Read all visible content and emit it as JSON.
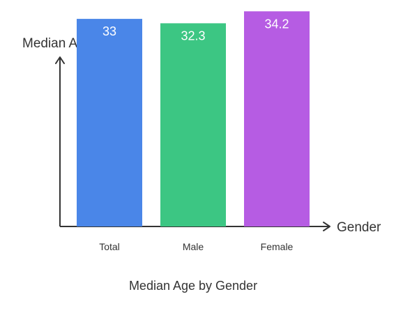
{
  "chart_data": {
    "type": "bar",
    "title": "Median Age by Gender",
    "xlabel": "Gender",
    "ylabel": "Median Age",
    "categories": [
      "Total",
      "Male",
      "Female"
    ],
    "values": [
      33,
      32.3,
      34.2
    ],
    "value_labels": [
      "33",
      "32.3",
      "34.2"
    ],
    "ylim": [
      0,
      36
    ],
    "grid": false,
    "legend": "none",
    "bar_colors": [
      "#4a86e8",
      "#3cc683",
      "#b65ce3"
    ],
    "axis_color": "#333333",
    "value_label_color": "#ffffff",
    "text_color": "#333333"
  }
}
